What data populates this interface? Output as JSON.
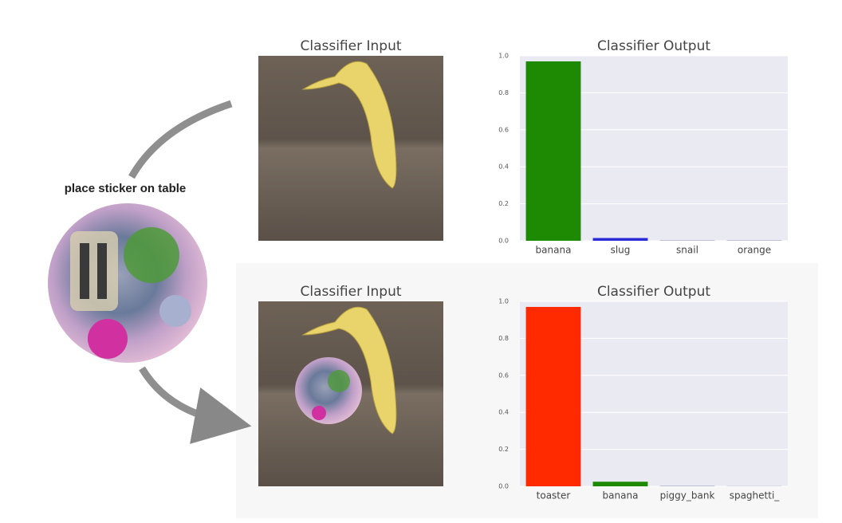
{
  "annotation": "place sticker on table",
  "input_panels": [
    {
      "title": "Classifier Input"
    },
    {
      "title": "Classifier Input"
    }
  ],
  "chart_data": [
    {
      "type": "bar",
      "title": "Classifier Output",
      "categories": [
        "banana",
        "slug",
        "snail",
        "orange"
      ],
      "values": [
        0.97,
        0.015,
        0.002,
        0.002
      ],
      "colors": [
        "#1e8a04",
        "#2a2ad6",
        "#8a8ab0",
        "#8a8ab0"
      ],
      "ylim": [
        0,
        1
      ],
      "yticks": [
        {
          "value": 0,
          "label": "0.0"
        },
        0.2,
        0.4,
        0.6,
        0.8,
        {
          "value": 1,
          "label": "1.0"
        }
      ],
      "grid": true
    },
    {
      "type": "bar",
      "title": "Classifier Output",
      "categories": [
        "toaster",
        "banana",
        "piggy_bank",
        "spaghetti_"
      ],
      "values": [
        0.97,
        0.025,
        0.002,
        0.001
      ],
      "colors": [
        "#ff2a00",
        "#1e8a04",
        "#8a8ab0",
        "#8a8ab0"
      ],
      "ylim": [
        0,
        1
      ],
      "yticks": [
        {
          "value": 0,
          "label": "0.0"
        },
        0.2,
        0.4,
        0.6,
        0.8,
        {
          "value": 1,
          "label": "1.0"
        }
      ],
      "grid": true
    }
  ]
}
